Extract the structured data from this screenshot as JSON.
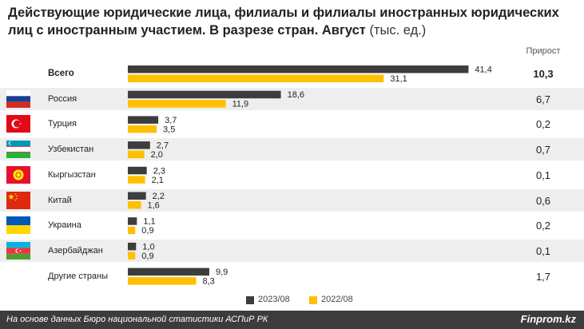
{
  "title": {
    "bold": "Действующие юридические лица, филиалы и филиалы иностранных юридических лиц с иностранным участием. В разрезе стран. Август",
    "unit": "(тыс. ед.)"
  },
  "growth_header": "Прирост",
  "colors": {
    "series_2023": "#3d3d3d",
    "series_2022": "#ffc000",
    "row_bg": "#eeeeee"
  },
  "chart_data": {
    "type": "bar",
    "orientation": "horizontal",
    "categories": [
      "Всего",
      "Россия",
      "Турция",
      "Узбекистан",
      "Кыргызстан",
      "Китай",
      "Украина",
      "Азербайджан",
      "Другие страны"
    ],
    "series": [
      {
        "name": "2023/08",
        "values": [
          41.4,
          18.6,
          3.7,
          2.7,
          2.3,
          2.2,
          1.1,
          1.0,
          9.9
        ]
      },
      {
        "name": "2022/08",
        "values": [
          31.1,
          11.9,
          3.5,
          2.0,
          2.1,
          1.6,
          0.9,
          0.9,
          8.3
        ]
      }
    ],
    "value_labels": [
      [
        "41,4",
        "18,6",
        "3,7",
        "2,7",
        "2,3",
        "2,2",
        "1,1",
        "1,0",
        "9,9"
      ],
      [
        "31,1",
        "11,9",
        "3,5",
        "2,0",
        "2,1",
        "1,6",
        "0,9",
        "0,9",
        "8,3"
      ]
    ],
    "growth": [
      "10,3",
      "6,7",
      "0,2",
      "0,7",
      "0,1",
      "0,6",
      "0,2",
      "0,1",
      "1,7"
    ],
    "flags": [
      null,
      "russia-flag-icon",
      "turkey-flag-icon",
      "uzbekistan-flag-icon",
      "kyrgyzstan-flag-icon",
      "china-flag-icon",
      "ukraine-flag-icon",
      "azerbaijan-flag-icon",
      null
    ],
    "legend_position": "bottom-center"
  },
  "footer": {
    "source": "На основе данных Бюро национальной статистики АСПиР РК",
    "brand": "Finprom.kz"
  }
}
